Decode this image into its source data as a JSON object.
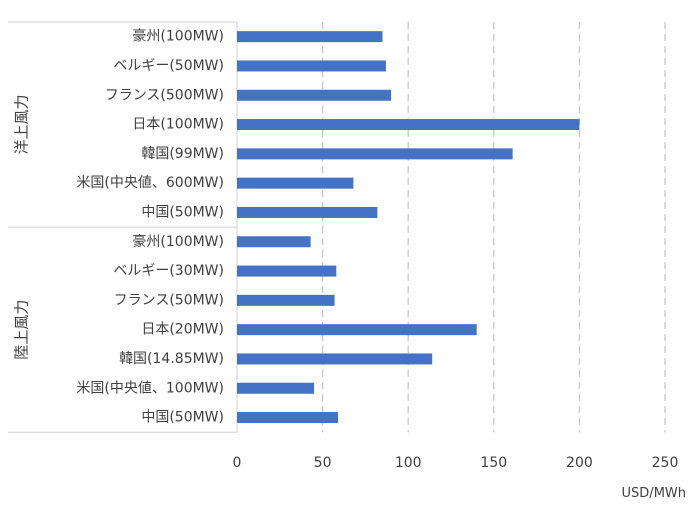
{
  "chart_data": {
    "type": "bar",
    "orientation": "horizontal",
    "unit": "USD/MWh",
    "xlim": [
      0,
      250
    ],
    "x_ticks": [
      "0",
      "50",
      "100",
      "150",
      "200",
      "250"
    ],
    "grid": "vertical-dashed",
    "bar_color": "#4472c4",
    "groups": [
      {
        "name": "洋上風力",
        "categories": [
          "豪州(100MW)",
          "ベルギー(50MW)",
          "フランス(500MW)",
          "日本(100MW)",
          "韓国(99MW)",
          "米国(中央値、600MW)",
          "中国(50MW)"
        ],
        "values": [
          85,
          87,
          90,
          200,
          161,
          68,
          82
        ]
      },
      {
        "name": "陸上風力",
        "categories": [
          "豪州(100MW)",
          "ベルギー(30MW)",
          "フランス(50MW)",
          "日本(20MW)",
          "韓国(14.85MW)",
          "米国(中央値、100MW)",
          "中国(50MW)"
        ],
        "values": [
          43,
          58,
          57,
          140,
          114,
          45,
          59
        ]
      }
    ]
  }
}
